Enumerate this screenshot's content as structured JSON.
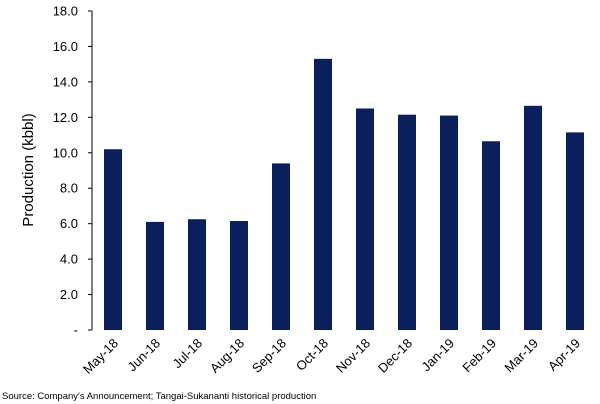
{
  "chart_data": {
    "type": "bar",
    "categories": [
      "May-18",
      "Jun-18",
      "Jul-18",
      "Aug-18",
      "Sep-18",
      "Oct-18",
      "Nov-18",
      "Dec-18",
      "Jan-19",
      "Feb-19",
      "Mar-19",
      "Apr-19"
    ],
    "values": [
      10.2,
      6.1,
      6.25,
      6.15,
      9.4,
      15.3,
      12.5,
      12.15,
      12.1,
      10.65,
      12.65,
      11.15
    ],
    "ylabel": "Production (kbbl)",
    "xlabel": "",
    "ylim": [
      0,
      18
    ],
    "y_ticks": [
      "-",
      "2.0",
      "4.0",
      "6.0",
      "8.0",
      "10.0",
      "12.0",
      "14.0",
      "16.0",
      "18.0"
    ],
    "bar_color": "#0a1f5c",
    "grid": false,
    "legend": "none"
  },
  "source_note": "Source: Company's Announcement; Tangai-Sukananti historical production"
}
